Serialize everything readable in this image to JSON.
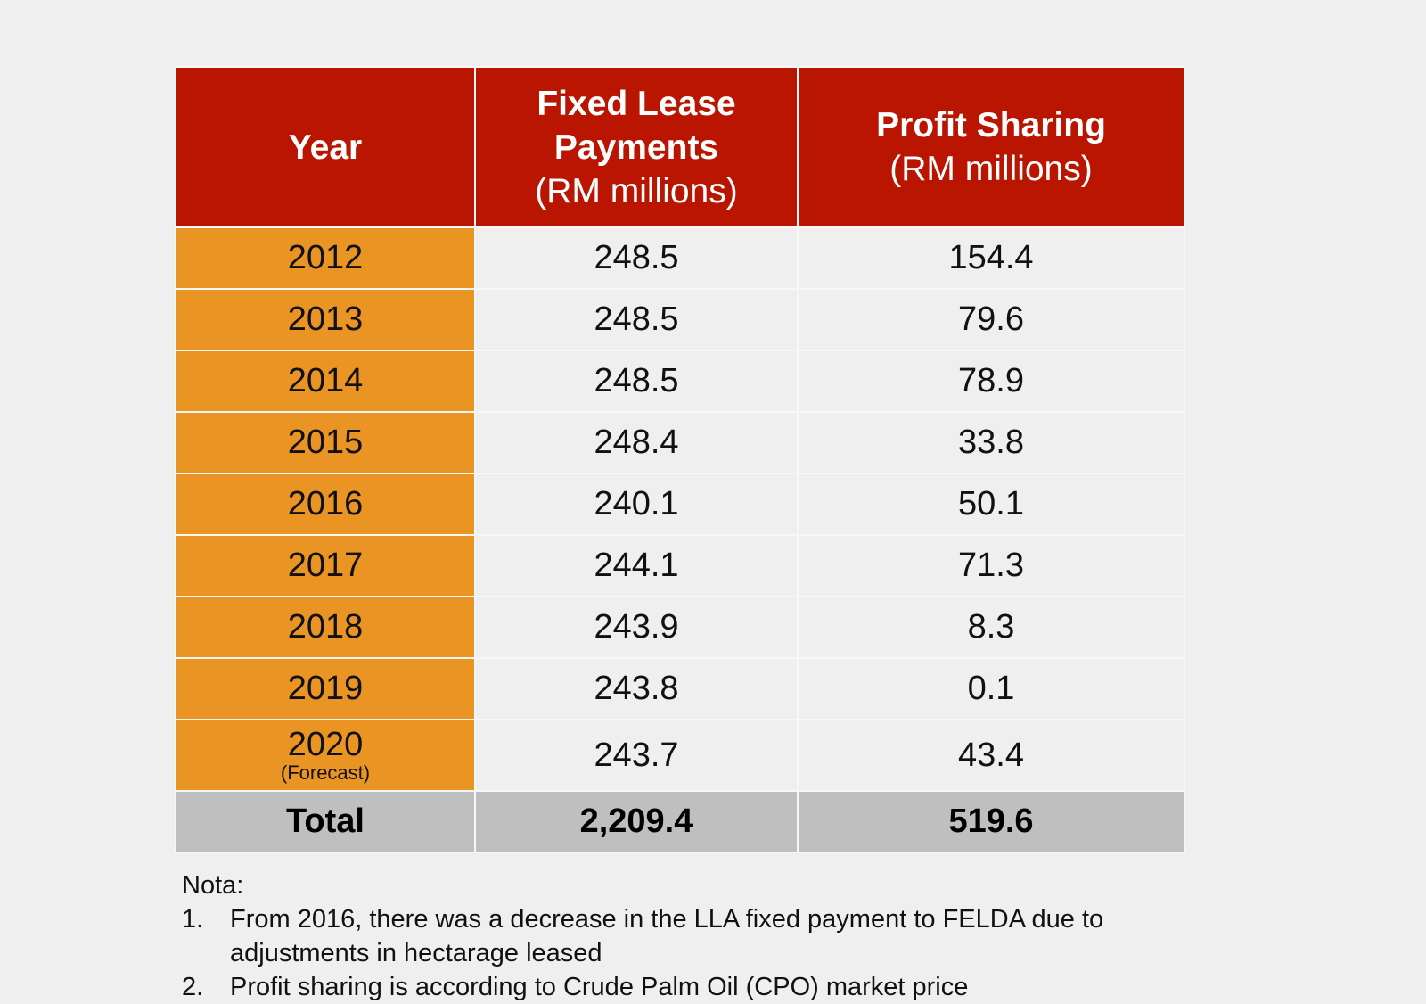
{
  "table": {
    "headers": {
      "year": "Year",
      "fixed_lease_title": "Fixed Lease Payments",
      "fixed_lease_unit": "(RM millions)",
      "profit_sharing_title": "Profit Sharing",
      "profit_sharing_unit": "(RM millions)"
    },
    "rows": [
      {
        "year": "2012",
        "fixed_lease": "248.5",
        "profit_sharing": "154.4"
      },
      {
        "year": "2013",
        "fixed_lease": "248.5",
        "profit_sharing": "79.6"
      },
      {
        "year": "2014",
        "fixed_lease": "248.5",
        "profit_sharing": "78.9"
      },
      {
        "year": "2015",
        "fixed_lease": "248.4",
        "profit_sharing": "33.8"
      },
      {
        "year": "2016",
        "fixed_lease": "240.1",
        "profit_sharing": "50.1"
      },
      {
        "year": "2017",
        "fixed_lease": "244.1",
        "profit_sharing": "71.3"
      },
      {
        "year": "2018",
        "fixed_lease": "243.9",
        "profit_sharing": "8.3"
      },
      {
        "year": "2019",
        "fixed_lease": "243.8",
        "profit_sharing": "0.1"
      },
      {
        "year": "2020",
        "year_note": "(Forecast)",
        "fixed_lease": "243.7",
        "profit_sharing": "43.4"
      }
    ],
    "total": {
      "label": "Total",
      "fixed_lease": "2,209.4",
      "profit_sharing": "519.6"
    }
  },
  "notes": {
    "label": "Nota:",
    "items": [
      {
        "num": "1.",
        "text": "From 2016, there was a decrease in the LLA fixed payment to FELDA due to adjustments in hectarage leased"
      },
      {
        "num": "2.",
        "text": "Profit sharing is according to Crude Palm Oil (CPO) market price"
      }
    ]
  },
  "colors": {
    "header_red": "#b91500",
    "year_orange": "#ea9424",
    "total_gray": "#bfbfbf",
    "background": "#efefef"
  }
}
